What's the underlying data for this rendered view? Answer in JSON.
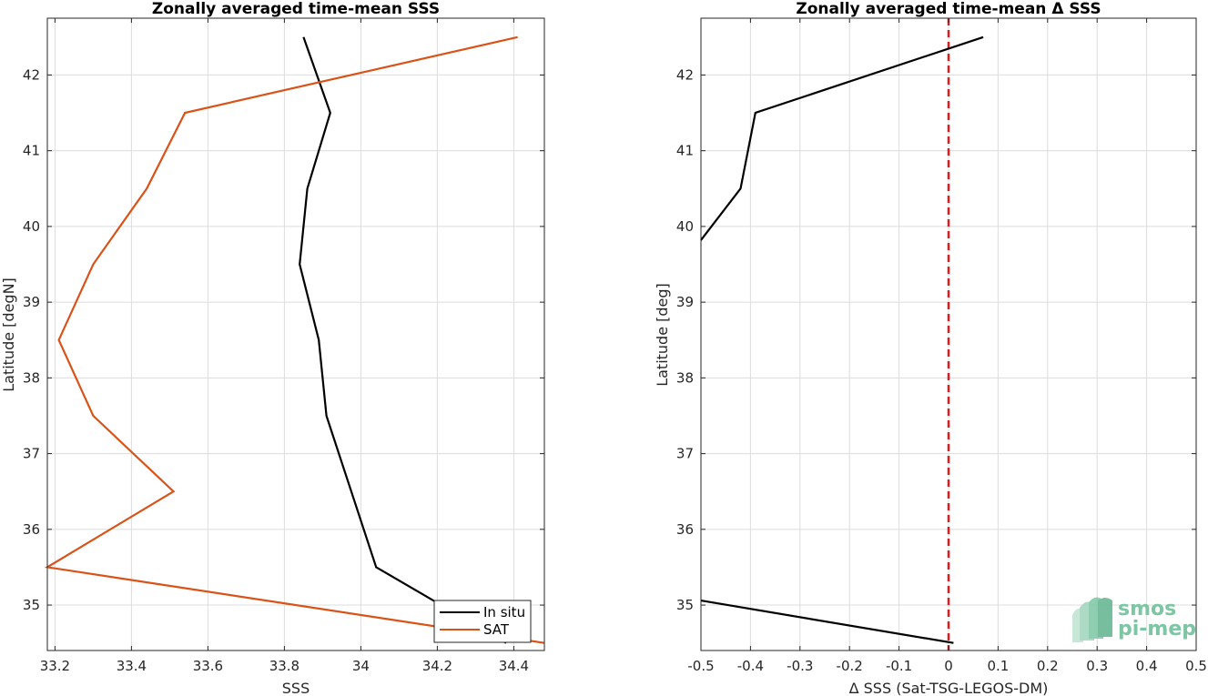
{
  "chart_data": [
    {
      "type": "line",
      "title": "Zonally averaged time-mean SSS",
      "xlabel": "SSS",
      "ylabel": "Latitude [degN]",
      "xlim": [
        33.18,
        34.48
      ],
      "ylim": [
        34.4,
        42.75
      ],
      "xticks": [
        33.2,
        33.4,
        33.6,
        33.8,
        34.0,
        34.2,
        34.4
      ],
      "xtick_labels": [
        "33.2",
        "33.4",
        "33.6",
        "33.8",
        "34",
        "34.2",
        "34.4"
      ],
      "yticks": [
        35,
        36,
        37,
        38,
        39,
        40,
        41,
        42
      ],
      "ytick_labels": [
        "35",
        "36",
        "37",
        "38",
        "39",
        "40",
        "41",
        "42"
      ],
      "grid": true,
      "legend": "bottom-right",
      "series": [
        {
          "name": "In situ",
          "color": "#000000",
          "points": [
            [
              34.38,
              34.5
            ],
            [
              34.04,
              35.5
            ],
            [
              33.91,
              37.5
            ],
            [
              33.89,
              38.5
            ],
            [
              33.84,
              39.5
            ],
            [
              33.86,
              40.5
            ],
            [
              33.92,
              41.5
            ],
            [
              33.85,
              42.5
            ]
          ]
        },
        {
          "name": "SAT",
          "color": "#d95319",
          "points": [
            [
              34.48,
              34.5
            ],
            [
              33.18,
              35.5
            ],
            [
              33.51,
              36.5
            ],
            [
              33.3,
              37.5
            ],
            [
              33.21,
              38.5
            ],
            [
              33.3,
              39.5
            ],
            [
              33.44,
              40.5
            ],
            [
              33.54,
              41.5
            ],
            [
              34.41,
              42.5
            ]
          ]
        }
      ]
    },
    {
      "type": "line",
      "title": "Zonally averaged time-mean Δ SSS",
      "xlabel": "Δ SSS (Sat-TSG-LEGOS-DM)",
      "ylabel": "Latitude [deg]",
      "xlim": [
        -0.5,
        0.5
      ],
      "ylim": [
        34.4,
        42.75
      ],
      "xticks": [
        -0.5,
        -0.4,
        -0.3,
        -0.2,
        -0.1,
        0,
        0.1,
        0.2,
        0.3,
        0.4,
        0.5
      ],
      "xtick_labels": [
        "-0.5",
        "-0.4",
        "-0.3",
        "-0.2",
        "-0.1",
        "0",
        "0.1",
        "0.2",
        "0.3",
        "0.4",
        "0.5"
      ],
      "yticks": [
        35,
        36,
        37,
        38,
        39,
        40,
        41,
        42
      ],
      "ytick_labels": [
        "35",
        "36",
        "37",
        "38",
        "39",
        "40",
        "41",
        "42"
      ],
      "grid": true,
      "reference_line": {
        "x": 0,
        "color": "#e31a1c",
        "style": "dashed"
      },
      "series": [
        {
          "color": "#000000",
          "points": [
            [
              0.01,
              34.5
            ],
            [
              -0.5,
              35.06
            ]
          ]
        },
        {
          "color": "#000000",
          "points": [
            [
              -0.5,
              39.82
            ],
            [
              -0.42,
              40.5
            ],
            [
              -0.39,
              41.5
            ],
            [
              0.07,
              42.5
            ]
          ]
        }
      ]
    }
  ],
  "logo": {
    "line1": "smos",
    "line2": "pi-mep"
  }
}
